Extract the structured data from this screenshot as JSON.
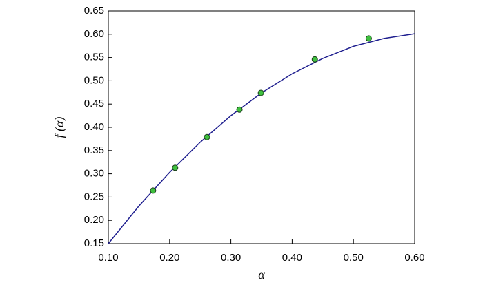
{
  "chart_data": {
    "type": "line",
    "xlabel": "α",
    "ylabel": "f (α)",
    "xlim": [
      0.1,
      0.6
    ],
    "xticks": [
      {
        "value": 0.1,
        "label": "0.10"
      },
      {
        "value": 0.2,
        "label": "0.20"
      },
      {
        "value": 0.3,
        "label": "0.30"
      },
      {
        "value": 0.4,
        "label": "0.40"
      },
      {
        "value": 0.5,
        "label": "0.50"
      },
      {
        "value": 0.6,
        "label": "0.60"
      }
    ],
    "ylim": [
      0.15,
      0.65
    ],
    "yticks": [
      0.15,
      {
        "value": 0.2,
        "label": "0.20"
      },
      0.25,
      {
        "value": 0.3,
        "label": "0.30"
      },
      0.35,
      {
        "value": 0.4,
        "label": "0.40"
      },
      0.45,
      {
        "value": 0.5,
        "label": "0.50"
      },
      0.55,
      {
        "value": 0.6,
        "label": "0.60"
      },
      0.65
    ],
    "series": [
      {
        "type": "line",
        "color": "#1f1f8f",
        "x": [
          0.1,
          0.15,
          0.2,
          0.25,
          0.3,
          0.35,
          0.4,
          0.45,
          0.5,
          0.55,
          0.6
        ],
        "values": [
          0.15,
          0.231,
          0.303,
          0.368,
          0.425,
          0.474,
          0.515,
          0.548,
          0.574,
          0.591,
          0.601
        ]
      },
      {
        "type": "scatter",
        "color": "#3fbf3f",
        "x": [
          0.173,
          0.209,
          0.261,
          0.314,
          0.349,
          0.437,
          0.525
        ],
        "values": [
          0.264,
          0.313,
          0.379,
          0.438,
          0.474,
          0.546,
          0.591
        ]
      }
    ]
  }
}
